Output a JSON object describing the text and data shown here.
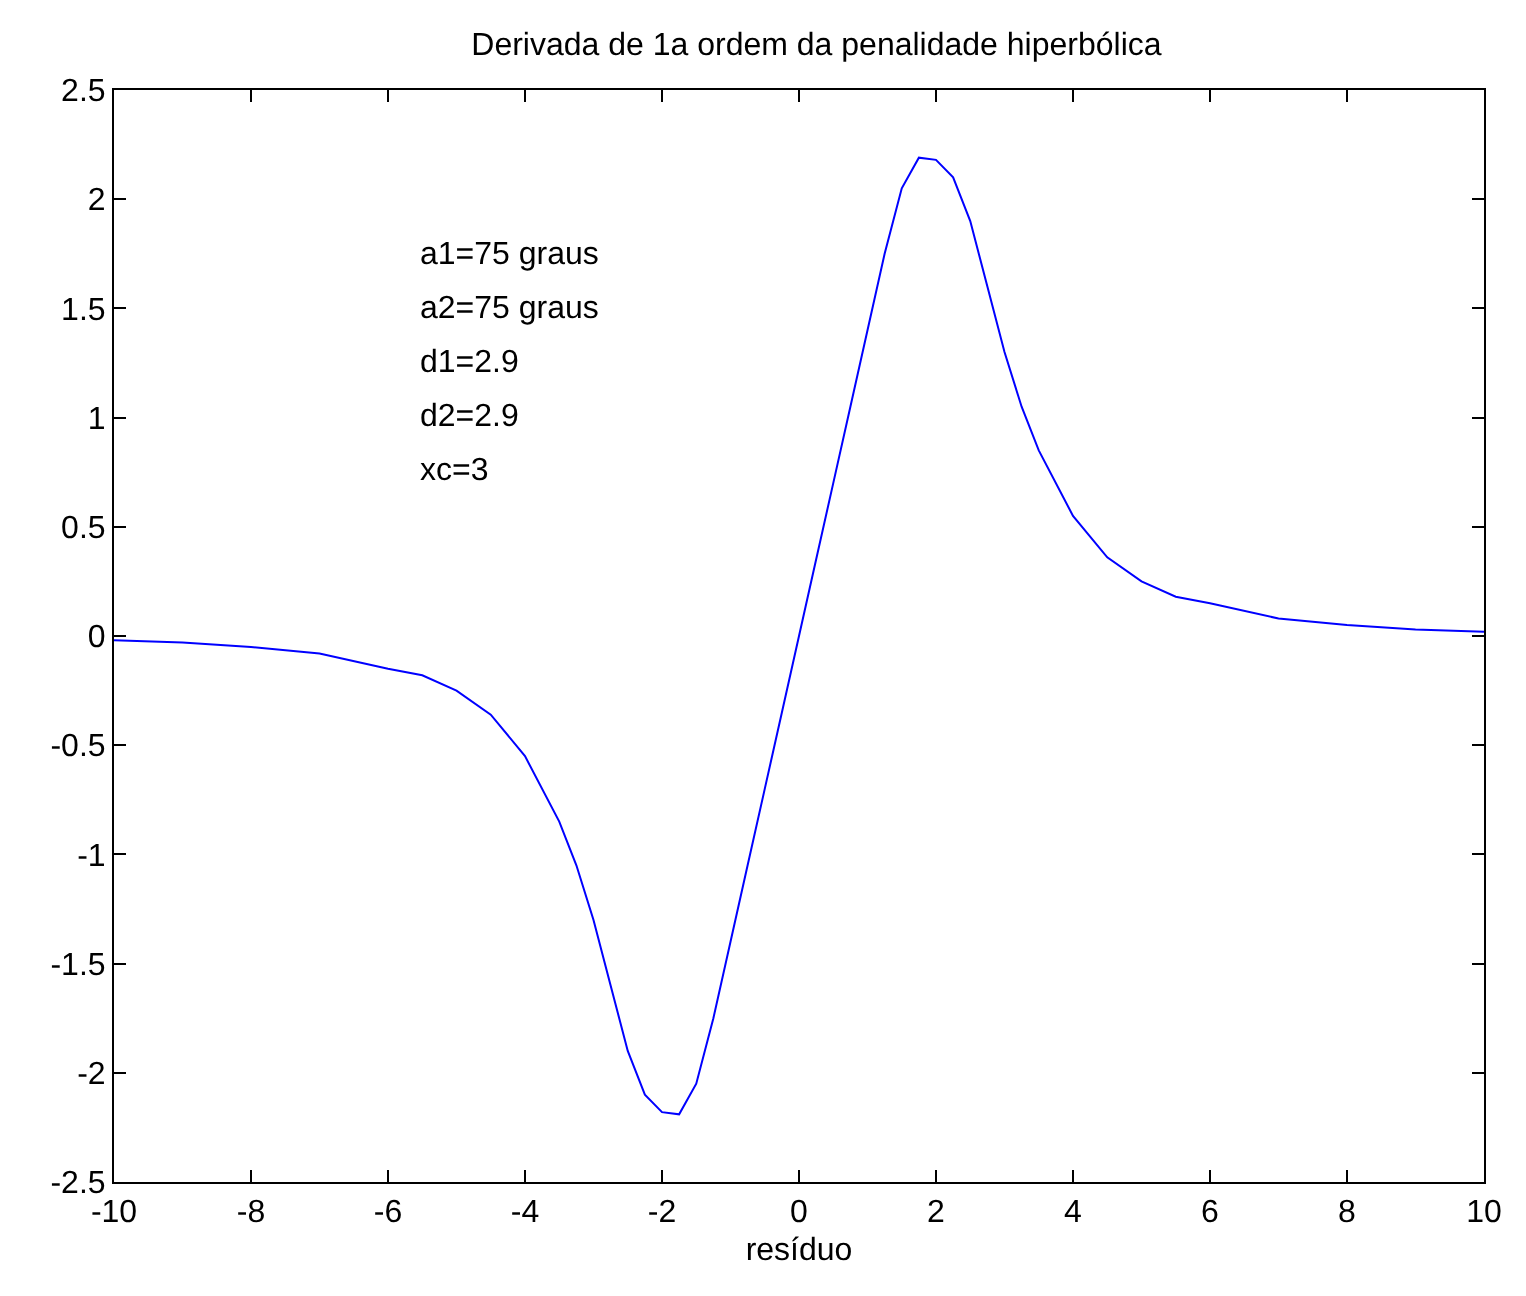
{
  "chart_data": {
    "type": "line",
    "title": "Derivada de 1a ordem da penalidade hiperbólica",
    "xlabel": "resíduo",
    "annotations": [
      "a1=75 graus",
      "a2=75 graus",
      "d1=2.9",
      "d2=2.9",
      "xc=3"
    ],
    "x": [
      -10,
      -9,
      -8,
      -7,
      -6,
      -5.5,
      -5,
      -4.5,
      -4,
      -3.5,
      -3.25,
      -3,
      -2.75,
      -2.5,
      -2.25,
      -2,
      -1.75,
      -1.5,
      -1.25,
      -1,
      -0.75,
      -0.5,
      -0.25,
      0,
      0.25,
      0.5,
      0.75,
      1,
      1.25,
      1.5,
      1.75,
      2,
      2.25,
      2.5,
      2.75,
      3,
      3.25,
      3.5,
      4,
      4.5,
      5,
      5.5,
      6,
      7,
      8,
      9,
      10
    ],
    "series": [
      {
        "color": "#0000ff",
        "values": [
          -0.02,
          -0.03,
          -0.05,
          -0.08,
          -0.15,
          -0.18,
          -0.25,
          -0.36,
          -0.55,
          -0.85,
          -1.05,
          -1.3,
          -1.6,
          -1.9,
          -2.1,
          -2.18,
          -2.19,
          -2.05,
          -1.75,
          -1.4,
          -1.05,
          -0.7,
          -0.35,
          0,
          0.35,
          0.7,
          1.05,
          1.4,
          1.75,
          2.05,
          2.19,
          2.18,
          2.1,
          1.9,
          1.6,
          1.3,
          1.05,
          0.85,
          0.55,
          0.36,
          0.25,
          0.18,
          0.15,
          0.08,
          0.05,
          0.03,
          0.02
        ]
      }
    ],
    "xlim": [
      -10,
      10
    ],
    "xticks": [
      -10,
      -8,
      -6,
      -4,
      -2,
      0,
      2,
      4,
      6,
      8,
      10
    ],
    "ylim": [
      -2.5,
      2.5
    ],
    "yticks": [
      -2.5,
      -2,
      -1.5,
      -1,
      -0.5,
      0,
      0.5,
      1,
      1.5,
      2,
      2.5
    ],
    "legend": false,
    "marker": "none",
    "line_style": "solid"
  }
}
